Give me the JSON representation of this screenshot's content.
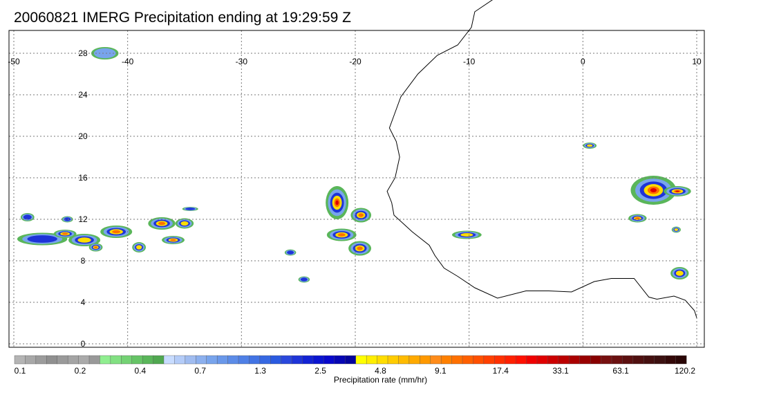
{
  "title": "20060821 IMERG Precipitation ending at 19:29:59 Z",
  "map": {
    "lon_range": [
      -50,
      10
    ],
    "lat_range": [
      -0.5,
      29.5
    ],
    "lon_ticks": [
      "-50",
      "-40",
      "-30",
      "-20",
      "-10",
      "0",
      "10"
    ],
    "lat_ticks": [
      "28",
      "24",
      "20",
      "16",
      "12",
      "8",
      "4",
      "0"
    ],
    "gridlines": "dotted",
    "coastline_color": "#000000"
  },
  "colorbar": {
    "label": "Precipitation rate (mm/hr)",
    "tick_labels": [
      "0.1",
      "0.2",
      "0.4",
      "0.7",
      "1.3",
      "2.5",
      "4.8",
      "9.1",
      "17.4",
      "33.1",
      "63.1",
      "120.2"
    ],
    "colors": [
      "#b4b4b4",
      "#a8a8a8",
      "#9c9c9c",
      "#909090",
      "#9a9a9a",
      "#a4a4a4",
      "#aaaaaa",
      "#999999",
      "#90ee90",
      "#82e082",
      "#74d274",
      "#66c466",
      "#5ab65a",
      "#50a850",
      "#c8dcff",
      "#b4ccf8",
      "#a0bcf0",
      "#8cb0ee",
      "#78a4ec",
      "#6a98ea",
      "#5c8ce8",
      "#4f80e6",
      "#4274e4",
      "#3668e2",
      "#2a5ae0",
      "#2a48dc",
      "#1e34d8",
      "#1222d4",
      "#0a14d0",
      "#0808cc",
      "#0606b4",
      "#04049c",
      "#ffff00",
      "#ffee00",
      "#ffdd00",
      "#ffcc00",
      "#ffbb00",
      "#ffaa00",
      "#ff9900",
      "#ff8c1a",
      "#ff8000",
      "#ff7000",
      "#ff6000",
      "#ff5000",
      "#ff4000",
      "#ff3000",
      "#ff2000",
      "#ff1000",
      "#f00000",
      "#e00000",
      "#cc0000",
      "#bb0000",
      "#aa0000",
      "#990000",
      "#880000",
      "#771010",
      "#6a1010",
      "#5c1010",
      "#501010",
      "#451010",
      "#3c1010",
      "#330808",
      "#2a0606"
    ]
  },
  "rain_cells": [
    {
      "lon": -47.5,
      "lat": 10.1,
      "rx": 2.2,
      "ry": 0.6,
      "level": 3
    },
    {
      "lon": -45.5,
      "lat": 10.6,
      "rx": 1.0,
      "ry": 0.4,
      "level": 5
    },
    {
      "lon": -43.8,
      "lat": 10.0,
      "rx": 1.4,
      "ry": 0.6,
      "level": 4
    },
    {
      "lon": -42.8,
      "lat": 9.3,
      "rx": 0.6,
      "ry": 0.4,
      "level": 5
    },
    {
      "lon": -41.0,
      "lat": 10.8,
      "rx": 1.4,
      "ry": 0.6,
      "level": 5
    },
    {
      "lon": -39.0,
      "lat": 9.3,
      "rx": 0.6,
      "ry": 0.5,
      "level": 4
    },
    {
      "lon": -36.0,
      "lat": 10.0,
      "rx": 1.0,
      "ry": 0.4,
      "level": 5
    },
    {
      "lon": -37.0,
      "lat": 11.6,
      "rx": 1.2,
      "ry": 0.6,
      "level": 5
    },
    {
      "lon": -35.0,
      "lat": 11.6,
      "rx": 0.8,
      "ry": 0.5,
      "level": 4
    },
    {
      "lon": -48.8,
      "lat": 12.2,
      "rx": 0.6,
      "ry": 0.4,
      "level": 3
    },
    {
      "lon": -45.3,
      "lat": 12.0,
      "rx": 0.5,
      "ry": 0.3,
      "level": 3
    },
    {
      "lon": -34.5,
      "lat": 13.0,
      "rx": 0.7,
      "ry": 0.2,
      "level": 3
    },
    {
      "lon": -21.6,
      "lat": 13.6,
      "rx": 1.0,
      "ry": 1.6,
      "level": 6
    },
    {
      "lon": -19.5,
      "lat": 12.4,
      "rx": 0.9,
      "ry": 0.7,
      "level": 5
    },
    {
      "lon": -21.2,
      "lat": 10.5,
      "rx": 1.3,
      "ry": 0.6,
      "level": 5
    },
    {
      "lon": -19.6,
      "lat": 9.2,
      "rx": 1.0,
      "ry": 0.7,
      "level": 5
    },
    {
      "lon": -25.7,
      "lat": 8.8,
      "rx": 0.5,
      "ry": 0.3,
      "level": 3
    },
    {
      "lon": -24.5,
      "lat": 6.2,
      "rx": 0.5,
      "ry": 0.3,
      "level": 3
    },
    {
      "lon": -10.2,
      "lat": 10.5,
      "rx": 1.3,
      "ry": 0.4,
      "level": 4
    },
    {
      "lon": 6.2,
      "lat": 14.8,
      "rx": 2.0,
      "ry": 1.4,
      "level": 6
    },
    {
      "lon": 4.8,
      "lat": 12.1,
      "rx": 0.8,
      "ry": 0.4,
      "level": 5
    },
    {
      "lon": 8.3,
      "lat": 14.7,
      "rx": 1.2,
      "ry": 0.5,
      "level": 6
    },
    {
      "lon": 0.6,
      "lat": 19.1,
      "rx": 0.6,
      "ry": 0.3,
      "level": 4
    },
    {
      "lon": 8.5,
      "lat": 6.8,
      "rx": 0.8,
      "ry": 0.6,
      "level": 4
    },
    {
      "lon": 8.2,
      "lat": 11.0,
      "rx": 0.4,
      "ry": 0.3,
      "level": 4
    },
    {
      "lon": -42.0,
      "lat": 28.0,
      "rx": 1.2,
      "ry": 0.6,
      "level": 2
    }
  ]
}
